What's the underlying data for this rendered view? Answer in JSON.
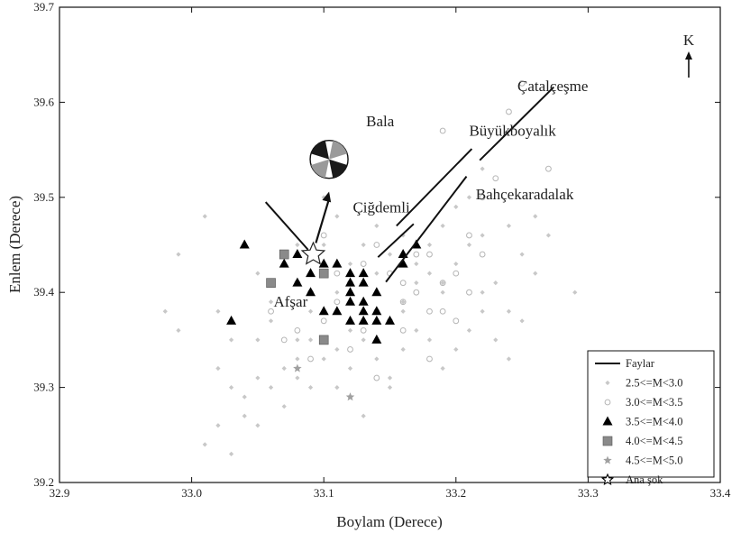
{
  "chart_data": {
    "type": "scatter",
    "xlabel": "Boylam (Derece)",
    "ylabel": "Enlem (Derece)",
    "xlim": [
      32.9,
      33.4
    ],
    "ylim": [
      39.2,
      39.7
    ],
    "x_ticks": [
      "32.9",
      "33.0",
      "33.1",
      "33.2",
      "33.3",
      "33.4"
    ],
    "y_ticks": [
      "39.2",
      "39.3",
      "39.4",
      "39.5",
      "39.6",
      "39.7"
    ],
    "north_label": "K",
    "places": [
      {
        "name": "Çatalçeşme",
        "x": 33.3,
        "y": 39.612
      },
      {
        "name": "Bala",
        "x": 33.132,
        "y": 39.575
      },
      {
        "name": "Büyükboyalık",
        "x": 33.21,
        "y": 39.565
      },
      {
        "name": "Bahçekaradalak",
        "x": 33.215,
        "y": 39.498
      },
      {
        "name": "Çiğdemli",
        "x": 33.122,
        "y": 39.484
      },
      {
        "name": "Afşar",
        "x": 33.062,
        "y": 39.385
      }
    ],
    "faults": [
      {
        "x": [
          33.155,
          33.212
        ],
        "y": [
          39.47,
          39.551
        ]
      },
      {
        "x": [
          33.218,
          33.274
        ],
        "y": [
          39.539,
          39.616
        ]
      },
      {
        "x": [
          33.141,
          33.168
        ],
        "y": [
          39.437,
          39.472
        ]
      },
      {
        "x": [
          33.147,
          33.208
        ],
        "y": [
          39.411,
          39.522
        ]
      },
      {
        "x": [
          33.056,
          33.088
        ],
        "y": [
          39.495,
          39.445
        ]
      }
    ],
    "mainshock": {
      "x": 33.092,
      "y": 39.44
    },
    "focal_mechanism": {
      "x": 33.104,
      "y": 39.54
    },
    "slip_arrow": {
      "x": [
        33.094,
        33.104
      ],
      "y": [
        39.452,
        39.506
      ]
    },
    "series": [
      {
        "name": "Faylar",
        "marker": "line",
        "color": "#111111"
      },
      {
        "name": "2.5<=M<3.0",
        "marker": "small-diamond",
        "color": "#c8c8c8",
        "x": [
          32.98,
          32.99,
          33.01,
          33.02,
          33.03,
          33.04,
          33.05,
          33.06,
          33.07,
          33.08,
          33.09,
          33.1,
          33.11,
          33.12,
          33.13,
          33.14,
          33.15,
          33.16,
          33.17,
          33.18,
          33.19,
          33.2,
          33.21,
          33.22,
          33.23,
          33.24,
          33.25,
          32.99,
          33.01,
          33.02,
          33.03,
          33.05,
          33.06,
          33.07,
          33.08,
          33.1,
          33.11,
          33.12,
          33.13,
          33.14,
          33.15,
          33.16,
          33.17,
          33.18,
          33.19,
          33.2,
          33.21,
          33.22,
          33.24,
          33.25,
          33.26,
          33.27,
          33.05,
          33.07,
          33.08,
          33.09,
          33.11,
          33.12,
          33.13,
          33.15,
          33.16,
          33.17,
          33.19,
          33.2,
          33.21,
          33.23,
          33.26,
          33.29,
          33.03,
          33.04,
          33.06,
          33.09,
          33.1,
          33.14,
          33.18,
          33.22,
          33.02,
          33.05,
          33.08,
          33.11,
          33.13,
          33.16,
          33.19,
          33.22,
          33.24
        ],
        "y": [
          39.38,
          39.36,
          39.24,
          39.26,
          39.23,
          39.29,
          39.26,
          39.3,
          39.32,
          39.31,
          39.35,
          39.33,
          39.34,
          39.36,
          39.35,
          39.33,
          39.31,
          39.34,
          39.36,
          39.35,
          39.32,
          39.34,
          39.36,
          39.38,
          39.35,
          39.33,
          39.37,
          39.44,
          39.48,
          39.38,
          39.35,
          39.42,
          39.39,
          39.44,
          39.45,
          39.5,
          39.48,
          39.43,
          39.45,
          39.42,
          39.44,
          39.46,
          39.43,
          39.45,
          39.47,
          39.49,
          39.5,
          39.46,
          39.47,
          39.44,
          39.48,
          39.46,
          39.31,
          39.28,
          39.33,
          39.3,
          39.3,
          39.32,
          39.27,
          39.3,
          39.39,
          39.41,
          39.4,
          39.43,
          39.45,
          39.41,
          39.42,
          39.4,
          39.3,
          39.27,
          39.37,
          39.38,
          39.45,
          39.47,
          39.42,
          39.53,
          39.32,
          39.35,
          39.35,
          39.4,
          39.39,
          39.38,
          39.41,
          39.4,
          39.38
        ]
      },
      {
        "name": "3.0<=M<3.5",
        "marker": "circle",
        "color": "#b5b5b5",
        "x": [
          33.06,
          33.08,
          33.09,
          33.1,
          33.11,
          33.12,
          33.13,
          33.14,
          33.15,
          33.16,
          33.17,
          33.18,
          33.19,
          33.2,
          33.21,
          33.22,
          33.07,
          33.09,
          33.11,
          33.13,
          33.15,
          33.17,
          33.19,
          33.21,
          33.12,
          33.14,
          33.16,
          33.18,
          33.2,
          33.22,
          33.24,
          33.08,
          33.1,
          33.14,
          33.16,
          33.18,
          33.23,
          33.25,
          33.27,
          33.19
        ],
        "y": [
          39.38,
          39.36,
          39.4,
          39.37,
          39.39,
          39.41,
          39.36,
          39.38,
          39.37,
          39.39,
          39.4,
          39.38,
          39.41,
          39.42,
          39.4,
          39.44,
          39.35,
          39.33,
          39.42,
          39.43,
          39.42,
          39.44,
          39.38,
          39.46,
          39.34,
          39.31,
          39.36,
          39.33,
          39.37,
          39.5,
          39.59,
          39.41,
          39.46,
          39.45,
          39.41,
          39.44,
          39.52,
          39.62,
          39.53,
          39.57
        ]
      },
      {
        "name": "3.5<=M<4.0",
        "marker": "triangle",
        "color": "#000000",
        "x": [
          33.03,
          33.04,
          33.07,
          33.08,
          33.08,
          33.09,
          33.09,
          33.1,
          33.1,
          33.11,
          33.11,
          33.12,
          33.12,
          33.12,
          33.12,
          33.12,
          33.13,
          33.13,
          33.13,
          33.13,
          33.13,
          33.14,
          33.14,
          33.14,
          33.14,
          33.15,
          33.16,
          33.16,
          33.17
        ],
        "y": [
          39.37,
          39.45,
          39.43,
          39.44,
          39.41,
          39.4,
          39.42,
          39.38,
          39.43,
          39.38,
          39.43,
          39.37,
          39.39,
          39.4,
          39.41,
          39.42,
          39.37,
          39.38,
          39.39,
          39.41,
          39.42,
          39.35,
          39.37,
          39.38,
          39.4,
          39.37,
          39.43,
          39.44,
          39.45
        ]
      },
      {
        "name": "4.0<=M<4.5",
        "marker": "square",
        "color": "#8a8a8a",
        "x": [
          33.06,
          33.07,
          33.1,
          33.1
        ],
        "y": [
          39.41,
          39.44,
          39.42,
          39.35
        ]
      },
      {
        "name": "4.5<=M<5.0",
        "marker": "small-star",
        "color": "#a0a0a0",
        "x": [
          33.08,
          33.12
        ],
        "y": [
          39.32,
          39.29
        ]
      },
      {
        "name": "Ana şok",
        "marker": "star",
        "color": "#000000"
      }
    ]
  }
}
